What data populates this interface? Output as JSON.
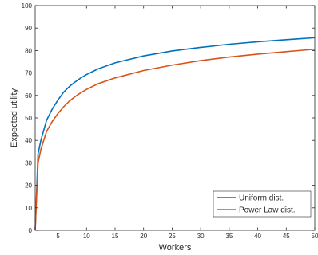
{
  "chart_data": {
    "type": "line",
    "title": "",
    "xlabel": "Workers",
    "ylabel": "Expected utility",
    "xlim": [
      1,
      50
    ],
    "ylim": [
      0,
      100
    ],
    "xticks": [
      5,
      10,
      15,
      20,
      25,
      30,
      35,
      40,
      45,
      50
    ],
    "yticks": [
      0,
      10,
      20,
      30,
      40,
      50,
      60,
      70,
      80,
      90,
      100
    ],
    "grid": false,
    "legend_position": "bottom-right",
    "x": [
      1,
      1.5,
      2,
      3,
      4,
      5,
      6,
      7,
      8,
      9,
      10,
      12,
      15,
      20,
      25,
      30,
      35,
      40,
      45,
      50
    ],
    "series": [
      {
        "name": "Uniform dist.",
        "color": "#0072BD",
        "values": [
          0,
          34,
          40,
          49,
          54,
          58,
          61.5,
          64,
          66,
          67.8,
          69.3,
          71.8,
          74.5,
          77.6,
          79.8,
          81.4,
          82.8,
          83.9,
          84.8,
          85.7
        ]
      },
      {
        "name": "Power Law dist.",
        "color": "#D95319",
        "values": [
          0,
          30,
          36,
          44,
          48.5,
          52,
          55,
          57.5,
          59.5,
          61.2,
          62.7,
          65.2,
          67.8,
          71.1,
          73.5,
          75.5,
          77.1,
          78.4,
          79.5,
          80.6
        ]
      }
    ]
  }
}
